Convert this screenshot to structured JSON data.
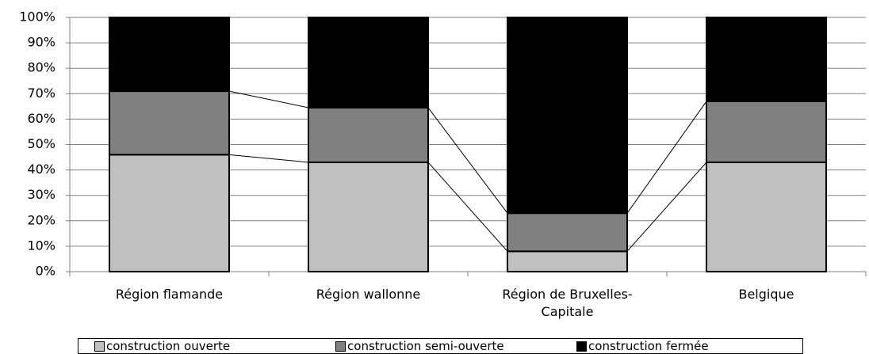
{
  "chart_data": {
    "type": "stacked_bar_100",
    "categories": [
      "Région flamande",
      "Région wallonne",
      "Région de Bruxelles-Capitale",
      "Belgique"
    ],
    "series": [
      {
        "name": "construction ouverte",
        "color": "#c0c0c0",
        "values": [
          46,
          43,
          8,
          43
        ]
      },
      {
        "name": "construction semi-ouverte",
        "color": "#808080",
        "values": [
          25,
          21.5,
          15,
          24
        ]
      },
      {
        "name": "construction fermée",
        "color": "#000000",
        "values": [
          29,
          35.5,
          77,
          33
        ]
      }
    ],
    "ylim": [
      0,
      100
    ],
    "yticks": [
      {
        "value": 0,
        "label": "0%"
      },
      {
        "value": 10,
        "label": "10%"
      },
      {
        "value": 20,
        "label": "20%"
      },
      {
        "value": 30,
        "label": "30%"
      },
      {
        "value": 40,
        "label": "40%"
      },
      {
        "value": 50,
        "label": "50%"
      },
      {
        "value": 60,
        "label": "60%"
      },
      {
        "value": 70,
        "label": "70%"
      },
      {
        "value": 80,
        "label": "80%"
      },
      {
        "value": 90,
        "label": "90%"
      },
      {
        "value": 100,
        "label": "100%"
      }
    ],
    "grid": true,
    "legend": "bottom"
  }
}
